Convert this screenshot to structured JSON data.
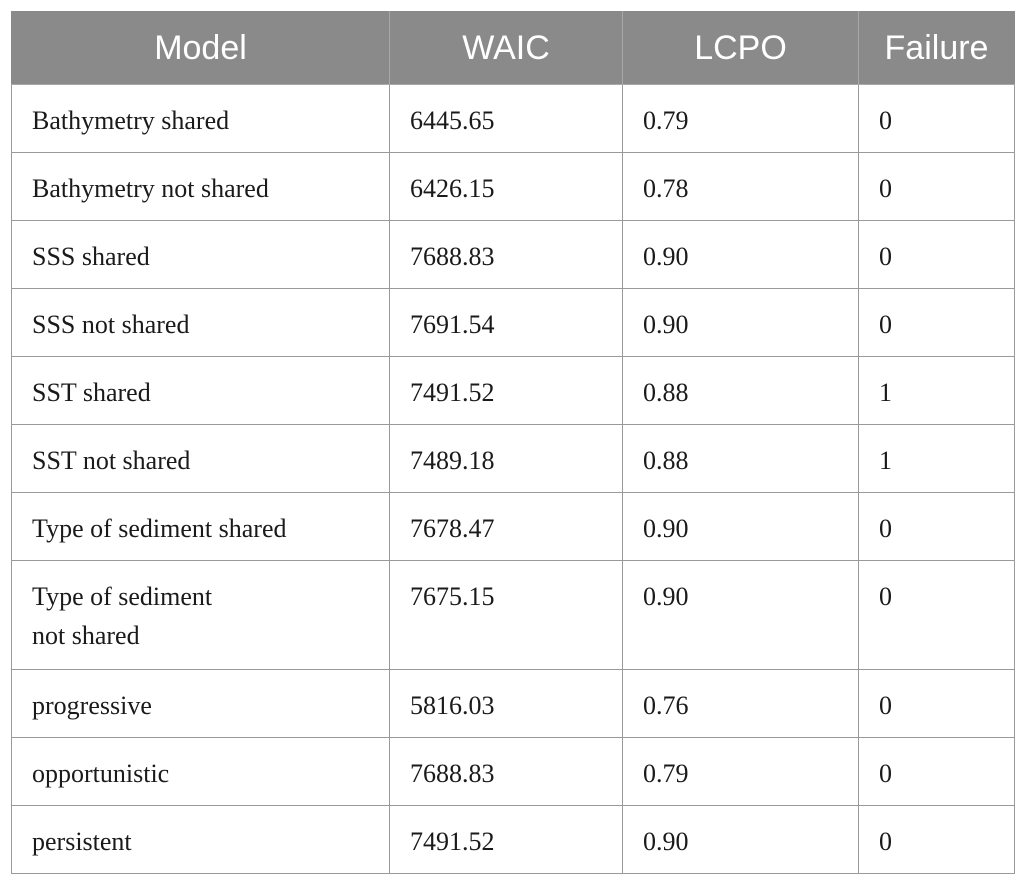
{
  "table": {
    "headers": {
      "model": "Model",
      "waic": "WAIC",
      "lcpo": "LCPO",
      "failure": "Failure"
    },
    "rows": [
      {
        "model": "Bathymetry shared",
        "waic": "6445.65",
        "lcpo": "0.79",
        "failure": "0"
      },
      {
        "model": "Bathymetry not shared",
        "waic": "6426.15",
        "lcpo": "0.78",
        "failure": "0"
      },
      {
        "model": "SSS shared",
        "waic": "7688.83",
        "lcpo": "0.90",
        "failure": "0"
      },
      {
        "model": "SSS not shared",
        "waic": "7691.54",
        "lcpo": "0.90",
        "failure": "0"
      },
      {
        "model": "SST shared",
        "waic": "7491.52",
        "lcpo": "0.88",
        "failure": "1"
      },
      {
        "model": "SST not shared",
        "waic": "7489.18",
        "lcpo": "0.88",
        "failure": "1"
      },
      {
        "model": "Type of sediment shared",
        "waic": "7678.47",
        "lcpo": "0.90",
        "failure": "0"
      },
      {
        "model_line1": "Type of sediment",
        "model_line2": "not shared",
        "waic": "7675.15",
        "lcpo": "0.90",
        "failure": "0"
      },
      {
        "model": "progressive",
        "waic": "5816.03",
        "lcpo": "0.76",
        "failure": "0"
      },
      {
        "model": "opportunistic",
        "waic": "7688.83",
        "lcpo": "0.79",
        "failure": "0"
      },
      {
        "model": "persistent",
        "waic": "7491.52",
        "lcpo": "0.90",
        "failure": "0"
      }
    ]
  },
  "colors": {
    "header_bg": "#8a8a8a",
    "header_text": "#ffffff",
    "border": "#9a9a9a",
    "body_text": "#1a1a1a"
  }
}
